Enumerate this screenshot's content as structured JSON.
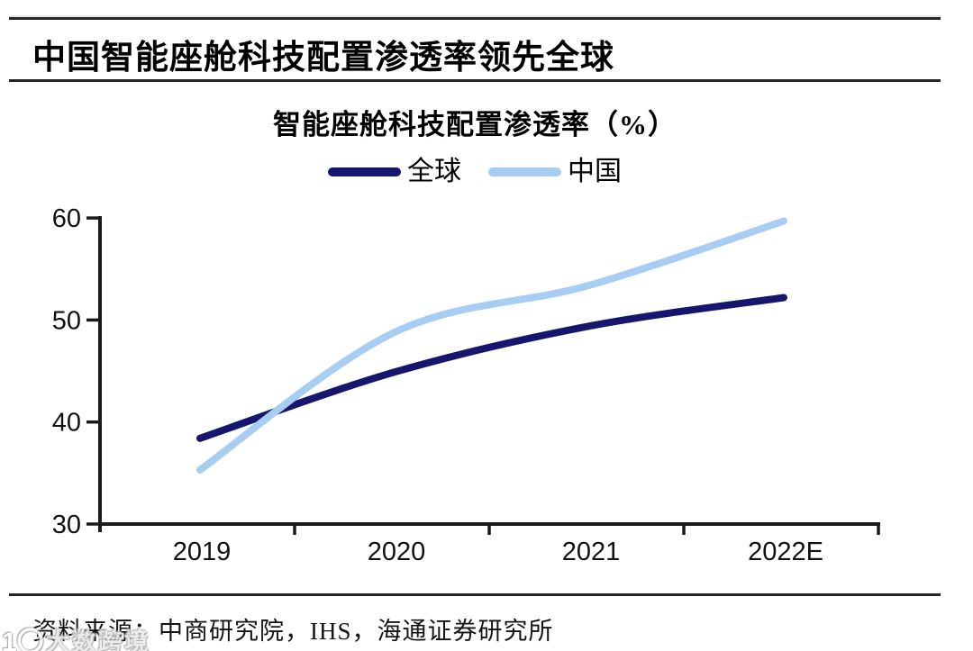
{
  "header": {
    "title": "中国智能座舱科技配置渗透率领先全球"
  },
  "chart_data": {
    "type": "line",
    "title": "智能座舱科技配置渗透率（%）",
    "categories": [
      "2019",
      "2020",
      "2021",
      "2022E"
    ],
    "series": [
      {
        "name": "全球",
        "color": "#16166f",
        "values": [
          38.4,
          44.9,
          49.4,
          52.2
        ]
      },
      {
        "name": "中国",
        "color": "#a8cdf2",
        "values": [
          35.3,
          48.8,
          53.4,
          59.7
        ]
      }
    ],
    "ylim": [
      30,
      60
    ],
    "yticks": [
      30,
      40,
      50,
      60
    ],
    "legend_position": "top",
    "grid": false,
    "axis_color": "#1a1a1a"
  },
  "footer": {
    "source": "资料来源：中商研究院，IHS，海通证券研究所"
  },
  "watermark": {
    "logo": "1〇",
    "text": "大数跨境"
  }
}
